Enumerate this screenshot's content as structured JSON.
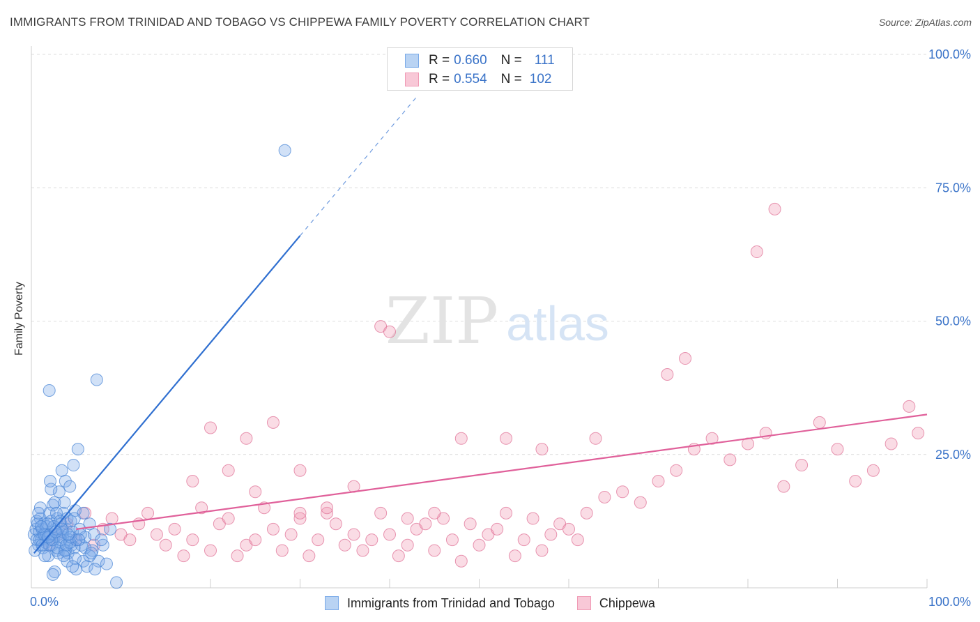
{
  "header": {
    "title": "IMMIGRANTS FROM TRINIDAD AND TOBAGO VS CHIPPEWA FAMILY POVERTY CORRELATION CHART",
    "source": "Source: ZipAtlas.com"
  },
  "watermark": {
    "zip": "ZIP",
    "atlas": "atlas"
  },
  "legend_top": [
    {
      "r_label": "R =",
      "r_value": "0.660",
      "n_label": "N =",
      "n_value": "111",
      "color": "#7aaae8"
    },
    {
      "r_label": "R =",
      "r_value": "0.554",
      "n_label": "N =",
      "n_value": "102",
      "color": "#f09ab5"
    }
  ],
  "legend_bottom": [
    {
      "label": "Immigrants from Trinidad and Tobago",
      "color": "#7aaae8"
    },
    {
      "label": "Chippewa",
      "color": "#f09ab5"
    }
  ],
  "chart_data": {
    "type": "scatter",
    "title": "IMMIGRANTS FROM TRINIDAD AND TOBAGO VS CHIPPEWA FAMILY POVERTY CORRELATION CHART",
    "xlabel": "",
    "ylabel": "Family Poverty",
    "xlim": [
      0,
      100
    ],
    "ylim": [
      0,
      100
    ],
    "x_tick_labels": [
      "0.0%",
      "100.0%"
    ],
    "y_tick_labels": [
      "25.0%",
      "50.0%",
      "75.0%",
      "100.0%"
    ],
    "y_ticks": [
      25,
      50,
      75,
      100
    ],
    "x_ticks": [
      0,
      10,
      20,
      30,
      40,
      50,
      60,
      70,
      80,
      90,
      100
    ],
    "grid": true,
    "series": [
      {
        "name": "Immigrants from Trinidad and Tobago",
        "color": "#7aaae8",
        "stroke": "#4a86d6",
        "trend": {
          "x0": 0.3,
          "y0": 6.5,
          "x1": 30,
          "y1": 66,
          "dash_to_x": 43,
          "dash_to_y": 92,
          "color": "#2f6fd0"
        },
        "points": [
          [
            0.3,
            10
          ],
          [
            0.5,
            11
          ],
          [
            0.6,
            9
          ],
          [
            0.7,
            12
          ],
          [
            0.8,
            8
          ],
          [
            0.9,
            10.5
          ],
          [
            1.0,
            13
          ],
          [
            1.1,
            9
          ],
          [
            1.2,
            11
          ],
          [
            1.3,
            7.5
          ],
          [
            1.4,
            12
          ],
          [
            1.5,
            10
          ],
          [
            1.6,
            8.5
          ],
          [
            1.7,
            11.5
          ],
          [
            1.8,
            9.5
          ],
          [
            1.9,
            6
          ],
          [
            2.0,
            14
          ],
          [
            2.1,
            10
          ],
          [
            2.2,
            12.5
          ],
          [
            2.3,
            8
          ],
          [
            2.4,
            15.5
          ],
          [
            2.5,
            9
          ],
          [
            2.6,
            16
          ],
          [
            2.7,
            11
          ],
          [
            2.8,
            7
          ],
          [
            2.9,
            13
          ],
          [
            3.0,
            10
          ],
          [
            3.1,
            18
          ],
          [
            3.2,
            8.5
          ],
          [
            3.3,
            12
          ],
          [
            3.4,
            22
          ],
          [
            3.5,
            9.5
          ],
          [
            3.6,
            14
          ],
          [
            3.7,
            7
          ],
          [
            3.8,
            20
          ],
          [
            3.9,
            11
          ],
          [
            4.0,
            13
          ],
          [
            4.1,
            6.5
          ],
          [
            4.2,
            9
          ],
          [
            4.3,
            19
          ],
          [
            4.4,
            12.5
          ],
          [
            4.5,
            8
          ],
          [
            4.6,
            10.5
          ],
          [
            4.7,
            23
          ],
          [
            4.8,
            7.5
          ],
          [
            4.9,
            14.5
          ],
          [
            5.0,
            9
          ],
          [
            5.2,
            26
          ],
          [
            5.4,
            11
          ],
          [
            5.6,
            8
          ],
          [
            5.8,
            5
          ],
          [
            6.0,
            9.5
          ],
          [
            6.2,
            4
          ],
          [
            6.5,
            12
          ],
          [
            6.8,
            7
          ],
          [
            7.0,
            10
          ],
          [
            7.3,
            39
          ],
          [
            7.5,
            5
          ],
          [
            8.0,
            8
          ],
          [
            8.4,
            4.5
          ],
          [
            8.8,
            11
          ],
          [
            9.5,
            1
          ],
          [
            0.4,
            7
          ],
          [
            0.9,
            9
          ],
          [
            1.5,
            6
          ],
          [
            2.0,
            8
          ],
          [
            2.5,
            11.5
          ],
          [
            3.0,
            6.5
          ],
          [
            3.5,
            10.5
          ],
          [
            4.0,
            5
          ],
          [
            1.0,
            15
          ],
          [
            1.8,
            12
          ],
          [
            2.2,
            18.5
          ],
          [
            2.8,
            14
          ],
          [
            3.3,
            9
          ],
          [
            3.8,
            7
          ],
          [
            4.3,
            8.5
          ],
          [
            5.0,
            3.5
          ],
          [
            6.0,
            7.5
          ],
          [
            0.6,
            12.5
          ],
          [
            1.2,
            8
          ],
          [
            1.7,
            10
          ],
          [
            2.3,
            9
          ],
          [
            2.9,
            7.5
          ],
          [
            3.4,
            11
          ],
          [
            3.9,
            8
          ],
          [
            4.4,
            9.5
          ],
          [
            4.9,
            5.5
          ],
          [
            5.5,
            10
          ],
          [
            0.8,
            14
          ],
          [
            1.4,
            10
          ],
          [
            2.6,
            3
          ],
          [
            3.6,
            6
          ],
          [
            4.6,
            4
          ],
          [
            5.8,
            14
          ],
          [
            6.5,
            6
          ],
          [
            7.1,
            3.5
          ],
          [
            2.1,
            20
          ],
          [
            3.7,
            16
          ],
          [
            1.1,
            11.5
          ],
          [
            1.9,
            9.5
          ],
          [
            2.4,
            2.5
          ],
          [
            2.7,
            10.5
          ],
          [
            3.2,
            12.5
          ],
          [
            4.1,
            10
          ],
          [
            4.8,
            13
          ],
          [
            5.3,
            9
          ],
          [
            6.7,
            6.5
          ],
          [
            7.8,
            9
          ],
          [
            2.0,
            37
          ],
          [
            28.3,
            82
          ]
        ]
      },
      {
        "name": "Chippewa",
        "color": "#f09ab5",
        "stroke": "#e07498",
        "trend": {
          "x0": 5,
          "y0": 11,
          "x1": 100,
          "y1": 32.5,
          "color": "#e0609a"
        },
        "points": [
          [
            2.0,
            8
          ],
          [
            3.0,
            10
          ],
          [
            4.0,
            12
          ],
          [
            5.0,
            9
          ],
          [
            6.0,
            14
          ],
          [
            7.0,
            8
          ],
          [
            8.0,
            11
          ],
          [
            9.0,
            13
          ],
          [
            10.0,
            10
          ],
          [
            11.0,
            9
          ],
          [
            12.0,
            12
          ],
          [
            13.0,
            14
          ],
          [
            14.0,
            10
          ],
          [
            15.0,
            8
          ],
          [
            16.0,
            11
          ],
          [
            17.0,
            6
          ],
          [
            18.0,
            9
          ],
          [
            19.0,
            15
          ],
          [
            20.0,
            7
          ],
          [
            21.0,
            12
          ],
          [
            22.0,
            13
          ],
          [
            23.0,
            6
          ],
          [
            24.0,
            8
          ],
          [
            25.0,
            9
          ],
          [
            26.0,
            15
          ],
          [
            27.0,
            11
          ],
          [
            28.0,
            7
          ],
          [
            29.0,
            10
          ],
          [
            30.0,
            13
          ],
          [
            31.0,
            6
          ],
          [
            32.0,
            9
          ],
          [
            33.0,
            14
          ],
          [
            34.0,
            12
          ],
          [
            35.0,
            8
          ],
          [
            36.0,
            10
          ],
          [
            37.0,
            7
          ],
          [
            38.0,
            9
          ],
          [
            39.0,
            14
          ],
          [
            40.0,
            10
          ],
          [
            41.0,
            6
          ],
          [
            42.0,
            8
          ],
          [
            43.0,
            11
          ],
          [
            44.0,
            12
          ],
          [
            45.0,
            7
          ],
          [
            46.0,
            13
          ],
          [
            47.0,
            9
          ],
          [
            48.0,
            5
          ],
          [
            49.0,
            12
          ],
          [
            50.0,
            8
          ],
          [
            51.0,
            10
          ],
          [
            52.0,
            11
          ],
          [
            53.0,
            14
          ],
          [
            54.0,
            6
          ],
          [
            55.0,
            9
          ],
          [
            56.0,
            13
          ],
          [
            57.0,
            7
          ],
          [
            58.0,
            10
          ],
          [
            59.0,
            12
          ],
          [
            60.0,
            11
          ],
          [
            61.0,
            9
          ],
          [
            62.0,
            14
          ],
          [
            64.0,
            17
          ],
          [
            66.0,
            18
          ],
          [
            68.0,
            16
          ],
          [
            70.0,
            20
          ],
          [
            72.0,
            22
          ],
          [
            74.0,
            26
          ],
          [
            76.0,
            28
          ],
          [
            78.0,
            24
          ],
          [
            80.0,
            27
          ],
          [
            82.0,
            29
          ],
          [
            84.0,
            19
          ],
          [
            86.0,
            23
          ],
          [
            88.0,
            31
          ],
          [
            90.0,
            26
          ],
          [
            92.0,
            20
          ],
          [
            94.0,
            22
          ],
          [
            96.0,
            27
          ],
          [
            98.0,
            34
          ],
          [
            99.0,
            29
          ],
          [
            18.0,
            20
          ],
          [
            20.0,
            30
          ],
          [
            22.0,
            22
          ],
          [
            24.0,
            28
          ],
          [
            25.0,
            18
          ],
          [
            27.0,
            31
          ],
          [
            30.0,
            14
          ],
          [
            33.0,
            15
          ],
          [
            36.0,
            19
          ],
          [
            39.0,
            49
          ],
          [
            40.0,
            48
          ],
          [
            42.0,
            13
          ],
          [
            45.0,
            14
          ],
          [
            48.0,
            28
          ],
          [
            53.0,
            28
          ],
          [
            57.0,
            26
          ],
          [
            63.0,
            28
          ],
          [
            71.0,
            40
          ],
          [
            73.0,
            43
          ],
          [
            81.0,
            63
          ],
          [
            83.0,
            71
          ],
          [
            30.0,
            22
          ]
        ]
      }
    ]
  }
}
